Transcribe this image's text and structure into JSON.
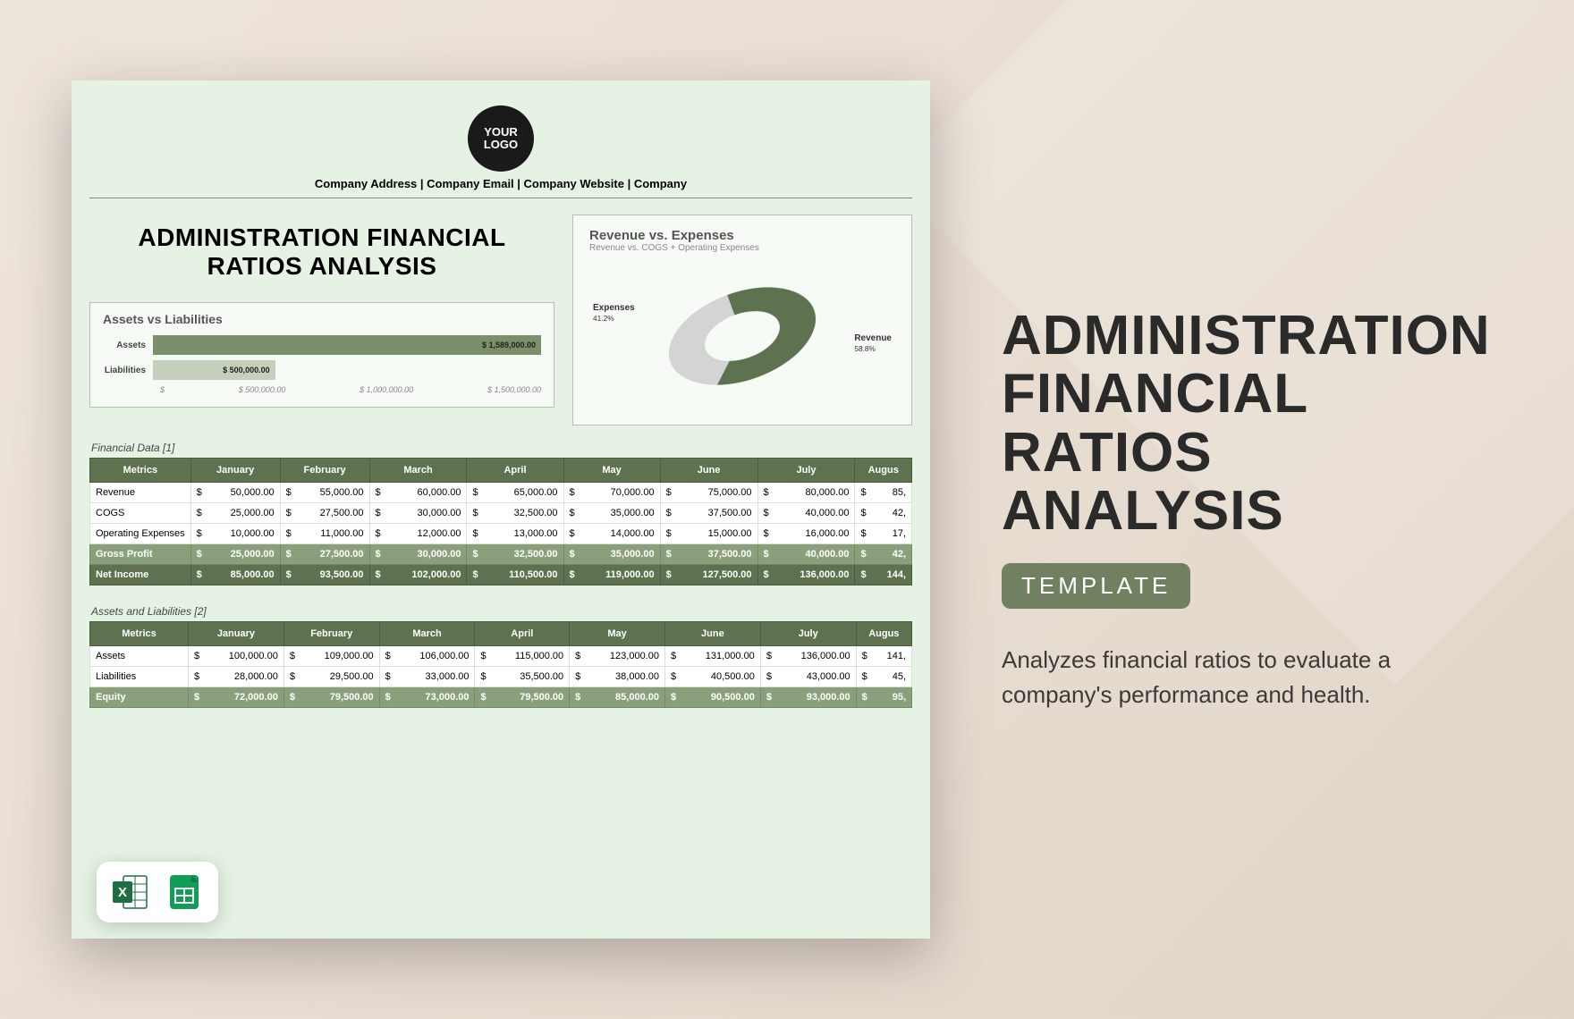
{
  "right": {
    "title_l1": "ADMINISTRATION",
    "title_l2": "FINANCIAL",
    "title_l3": "RATIOS",
    "title_l4": "ANALYSIS",
    "badge": "TEMPLATE",
    "description": "Analyzes financial ratios to evaluate a company's performance and health."
  },
  "preview": {
    "logo_text": "YOUR LOGO",
    "company_line": "Company Address | Company Email | Company Website | Company",
    "main_title_l1": "ADMINISTRATION FINANCIAL",
    "main_title_l2": "RATIOS ANALYSIS",
    "bar_chart": {
      "title": "Assets vs Liabilities",
      "max": 1589000,
      "rows": [
        {
          "label": "Assets",
          "value": 1589000,
          "value_label": "$ 1,589,000.00",
          "color": "#7a8f6a"
        },
        {
          "label": "Liabilities",
          "value": 500000,
          "value_label": "$ 500,000.00",
          "color": "#c5d1bc"
        }
      ],
      "axis": [
        "$",
        "$ 500,000.00",
        "$ 1,000,000.00",
        "$ 1,500,000.00"
      ]
    },
    "donut_chart": {
      "title": "Revenue vs. Expenses",
      "subtitle": "Revenue vs. COGS + Operating Expenses",
      "revenue": {
        "label": "Revenue",
        "pct": "58.8%",
        "value": 58.8,
        "color": "#5f7250"
      },
      "expenses": {
        "label": "Expenses",
        "pct": "41.2%",
        "value": 41.2,
        "color": "#d4d4d4"
      }
    },
    "table1": {
      "caption": "Financial Data [1]",
      "columns": [
        "Metrics",
        "January",
        "February",
        "March",
        "April",
        "May",
        "June",
        "July",
        "Augus"
      ],
      "rows": [
        {
          "label": "Revenue",
          "vals": [
            "50,000.00",
            "55,000.00",
            "60,000.00",
            "65,000.00",
            "70,000.00",
            "75,000.00",
            "80,000.00",
            "85,"
          ]
        },
        {
          "label": "COGS",
          "vals": [
            "25,000.00",
            "27,500.00",
            "30,000.00",
            "32,500.00",
            "35,000.00",
            "37,500.00",
            "40,000.00",
            "42,"
          ]
        },
        {
          "label": "Operating Expenses",
          "vals": [
            "10,000.00",
            "11,000.00",
            "12,000.00",
            "13,000.00",
            "14,000.00",
            "15,000.00",
            "16,000.00",
            "17,"
          ]
        }
      ],
      "hl_rows": [
        {
          "label": "Gross Profit",
          "cls": "hl",
          "vals": [
            "25,000.00",
            "27,500.00",
            "30,000.00",
            "32,500.00",
            "35,000.00",
            "37,500.00",
            "40,000.00",
            "42,"
          ]
        },
        {
          "label": "Net Income",
          "cls": "hl2",
          "vals": [
            "85,000.00",
            "93,500.00",
            "102,000.00",
            "110,500.00",
            "119,000.00",
            "127,500.00",
            "136,000.00",
            "144,"
          ]
        }
      ]
    },
    "table2": {
      "caption": "Assets and Liabilities [2]",
      "columns": [
        "Metrics",
        "January",
        "February",
        "March",
        "April",
        "May",
        "June",
        "July",
        "Augus"
      ],
      "rows": [
        {
          "label": "Assets",
          "vals": [
            "100,000.00",
            "109,000.00",
            "106,000.00",
            "115,000.00",
            "123,000.00",
            "131,000.00",
            "136,000.00",
            "141,"
          ]
        },
        {
          "label": "Liabilities",
          "vals": [
            "28,000.00",
            "29,500.00",
            "33,000.00",
            "35,500.00",
            "38,000.00",
            "40,500.00",
            "43,000.00",
            "45,"
          ]
        }
      ],
      "hl_rows": [
        {
          "label": "Equity",
          "cls": "hl",
          "vals": [
            "72,000.00",
            "79,500.00",
            "73,000.00",
            "79,500.00",
            "85,000.00",
            "90,500.00",
            "93,000.00",
            "95,"
          ]
        }
      ]
    }
  },
  "colors": {
    "accent": "#5f7250",
    "accent_light": "#8aa07a",
    "badge_bg": "#708060",
    "preview_bg": "#e6f3e4"
  }
}
